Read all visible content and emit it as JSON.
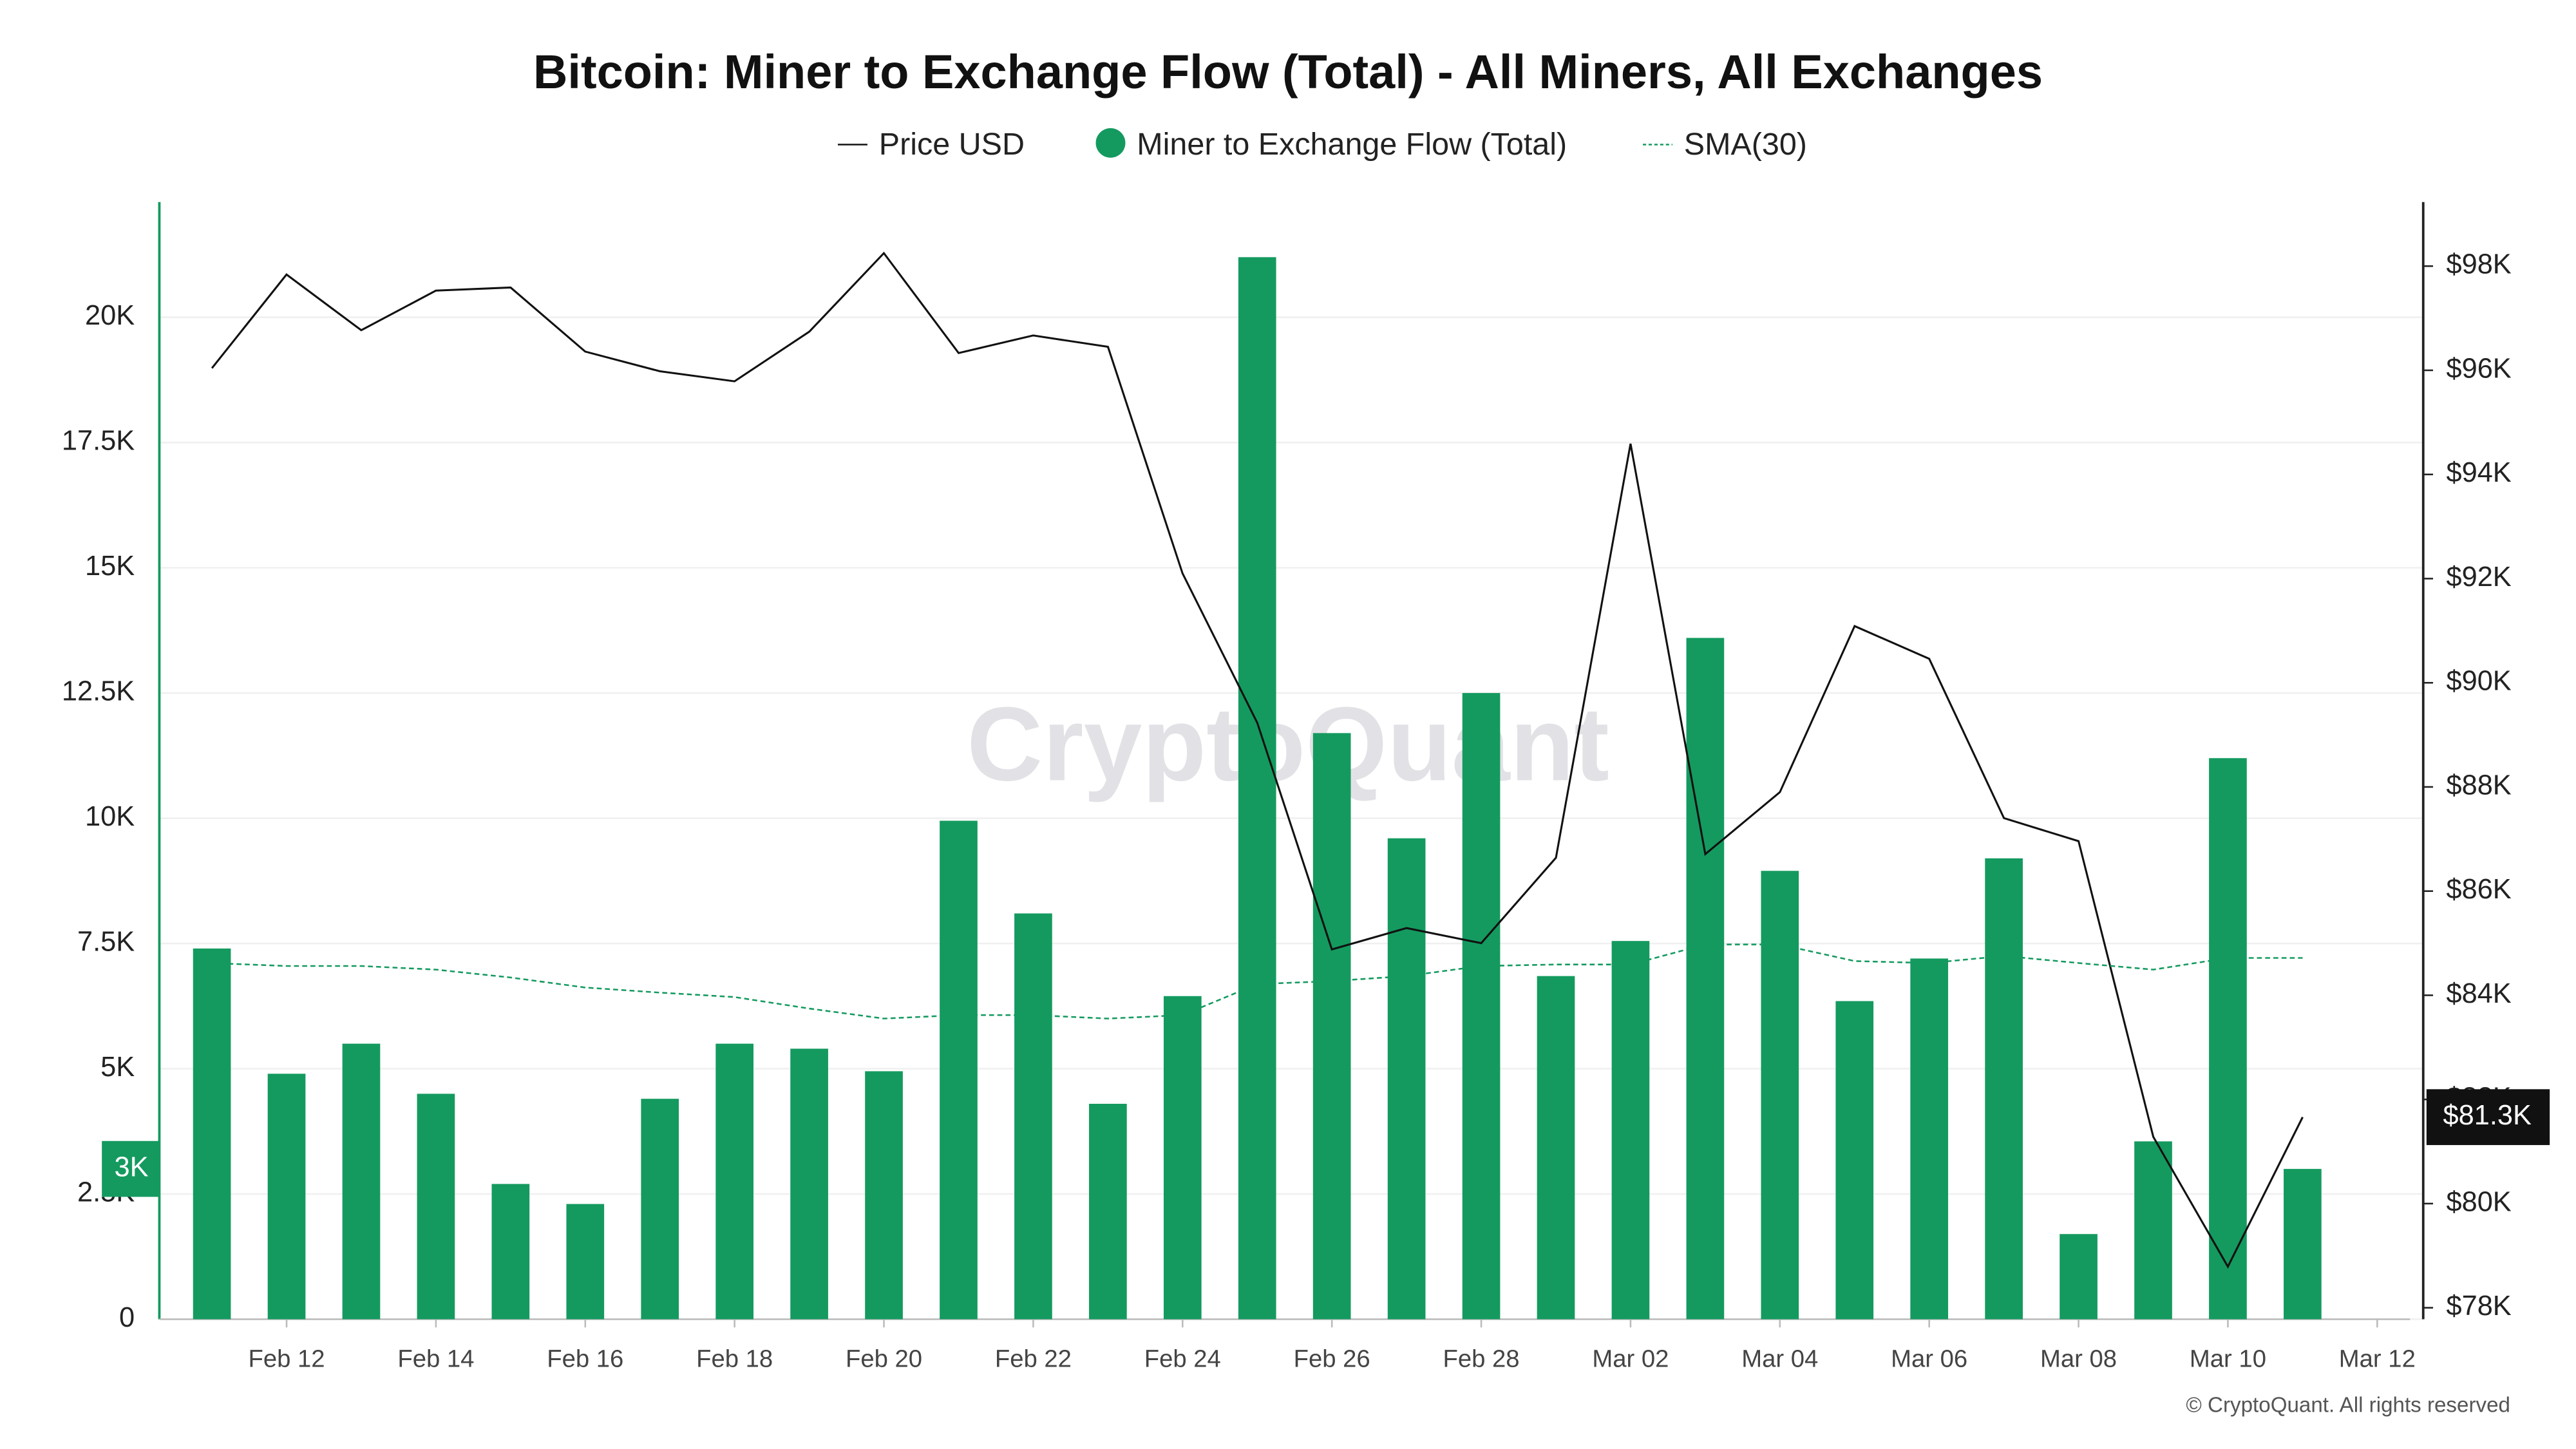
{
  "chart_data": {
    "type": "bar",
    "title": "Bitcoin: Miner to Exchange Flow (Total) - All Miners, All Exchanges",
    "watermark": "CryptoQuant",
    "copyright": "© CryptoQuant. All rights reserved",
    "categories": [
      null,
      "Feb 12",
      null,
      "Feb 14",
      null,
      "Feb 16",
      null,
      "Feb 18",
      null,
      "Feb 20",
      null,
      "Feb 22",
      null,
      "Feb 24",
      null,
      "Feb 26",
      null,
      "Feb 28",
      null,
      "Mar 02",
      null,
      "Mar 04",
      null,
      "Mar 06",
      null,
      "Mar 08",
      null,
      "Mar 10",
      null,
      "Mar 12"
    ],
    "series": [
      {
        "name": "Price USD",
        "type": "line",
        "axis": "y2",
        "color": "#111111",
        "values": [
          96040,
          97840,
          96770,
          97530,
          97590,
          96360,
          95980,
          95790,
          96740,
          98250,
          96330,
          96670,
          96450,
          92100,
          89230,
          84880,
          85290,
          85000,
          86640,
          94590,
          86710,
          87900,
          91090,
          90460,
          87400,
          86960,
          81280,
          78790,
          81660,
          null
        ]
      },
      {
        "name": "Miner to Exchange Flow (Total)",
        "type": "bar",
        "color": "#149a5f",
        "values": [
          7400,
          4900,
          5500,
          4500,
          2700,
          2300,
          4400,
          5500,
          5400,
          4950,
          9950,
          8100,
          4300,
          6450,
          21200,
          11700,
          9600,
          12500,
          6850,
          7550,
          13600,
          8950,
          6350,
          7200,
          9200,
          1700,
          3550,
          11200,
          3000,
          null
        ]
      },
      {
        "name": "SMA(30)",
        "type": "line",
        "dashed": true,
        "color": "#149a5f",
        "values": [
          7110,
          7050,
          7050,
          6980,
          6820,
          6620,
          6520,
          6430,
          6200,
          6000,
          6070,
          6070,
          6000,
          6070,
          6690,
          6750,
          6850,
          7050,
          7080,
          7080,
          7480,
          7480,
          7150,
          7110,
          7250,
          7110,
          6980,
          7210,
          7210,
          null
        ]
      }
    ],
    "current_flow_label": "3K",
    "current_price_label": "$81.3K",
    "ylim": [
      0,
      22300
    ],
    "yticks": [
      0,
      {
        "value": 2500,
        "label": "2.5K"
      },
      {
        "value": 5000,
        "label": "5K"
      },
      {
        "value": 7500,
        "label": "7.5K"
      },
      {
        "value": 10000,
        "label": "10K"
      },
      {
        "value": 12500,
        "label": "12.5K"
      },
      {
        "value": 15000,
        "label": "15K"
      },
      {
        "value": 17500,
        "label": "17.5K"
      },
      {
        "value": 20000,
        "label": "20K"
      }
    ],
    "y2lim": [
      77780,
      99230
    ],
    "y2ticks": [
      {
        "value": 78000,
        "label": "$78K"
      },
      {
        "value": 80000,
        "label": "$80K"
      },
      {
        "value": 82000,
        "label": "$82K"
      },
      {
        "value": 84000,
        "label": "$84K"
      },
      {
        "value": 86000,
        "label": "$86K"
      },
      {
        "value": 88000,
        "label": "$88K"
      },
      {
        "value": 90000,
        "label": "$90K"
      },
      {
        "value": 92000,
        "label": "$92K"
      },
      {
        "value": 94000,
        "label": "$94K"
      },
      {
        "value": 96000,
        "label": "$96K"
      },
      {
        "value": 98000,
        "label": "$98K"
      }
    ],
    "grid": true
  }
}
